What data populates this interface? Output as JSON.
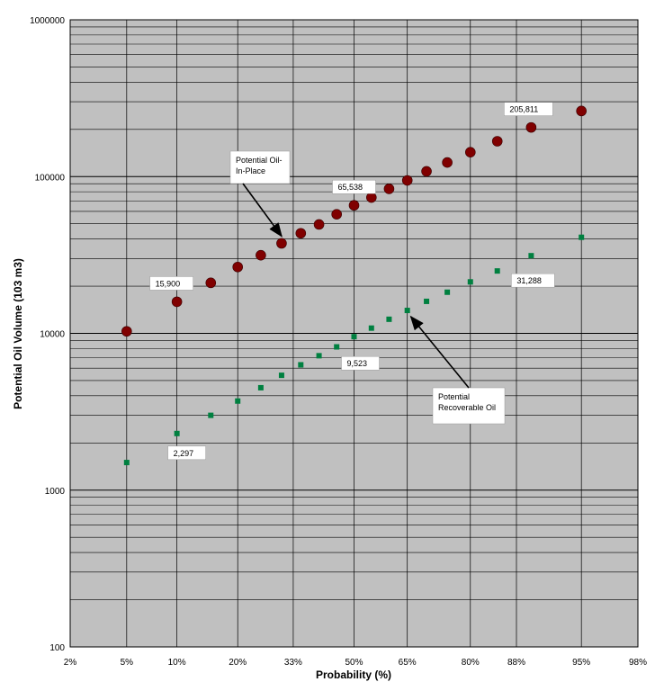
{
  "chart_data": {
    "type": "scatter",
    "title": "",
    "xlabel": "Probability (%)",
    "ylabel": "Potential Oil Volume (103 m3)",
    "x_scale": "probability",
    "y_scale": "log",
    "ylim": [
      100,
      1000000
    ],
    "grid": true,
    "colors": {
      "plot_bg": "#c0c0c0",
      "grid": "#000000",
      "series_oil_in_place": "#800000",
      "series_recoverable": "#008040"
    },
    "x_ticks": [
      "2%",
      "5%",
      "10%",
      "20%",
      "33%",
      "50%",
      "65%",
      "80%",
      "88%",
      "95%",
      "98%"
    ],
    "y_ticks": [
      "100",
      "1000",
      "10000",
      "100000",
      "1000000"
    ],
    "series": [
      {
        "name": "Potential Oil-In-Place",
        "marker": "circle",
        "points": [
          [
            5,
            10300
          ],
          [
            10,
            15900
          ],
          [
            15,
            21000
          ],
          [
            20,
            26500
          ],
          [
            25,
            31500
          ],
          [
            30,
            37500
          ],
          [
            35,
            43500
          ],
          [
            40,
            49500
          ],
          [
            45,
            57500
          ],
          [
            50,
            65538
          ],
          [
            55,
            73500
          ],
          [
            60,
            83500
          ],
          [
            65,
            94500
          ],
          [
            70,
            108000
          ],
          [
            75,
            123000
          ],
          [
            80,
            143000
          ],
          [
            85,
            168000
          ],
          [
            90,
            205811
          ],
          [
            95,
            262000
          ]
        ]
      },
      {
        "name": "Potential Recoverable Oil",
        "marker": "square",
        "points": [
          [
            5,
            1500
          ],
          [
            10,
            2297
          ],
          [
            15,
            3000
          ],
          [
            20,
            3700
          ],
          [
            25,
            4500
          ],
          [
            30,
            5400
          ],
          [
            35,
            6300
          ],
          [
            40,
            7200
          ],
          [
            45,
            8200
          ],
          [
            50,
            9523
          ],
          [
            55,
            10800
          ],
          [
            60,
            12300
          ],
          [
            65,
            14000
          ],
          [
            70,
            16000
          ],
          [
            75,
            18300
          ],
          [
            80,
            21300
          ],
          [
            85,
            25000
          ],
          [
            90,
            31288
          ],
          [
            95,
            41000
          ]
        ]
      }
    ],
    "data_labels": [
      {
        "series": 0,
        "x": 10,
        "y": 15900,
        "text": "15,900"
      },
      {
        "series": 0,
        "x": 50,
        "y": 65538,
        "text": "65,538"
      },
      {
        "series": 0,
        "x": 90,
        "y": 205811,
        "text": "205,811"
      },
      {
        "series": 1,
        "x": 10,
        "y": 2297,
        "text": "2,297"
      },
      {
        "series": 1,
        "x": 50,
        "y": 9523,
        "text": "9,523"
      },
      {
        "series": 1,
        "x": 90,
        "y": 31288,
        "text": "31,288"
      }
    ],
    "callouts": [
      {
        "lines": [
          "Potential Oil-",
          "In-Place"
        ],
        "target_series": 0,
        "target_x": 30
      },
      {
        "lines": [
          "Potential",
          "Recoverable Oil"
        ],
        "target_series": 1,
        "target_x": 65
      }
    ]
  }
}
